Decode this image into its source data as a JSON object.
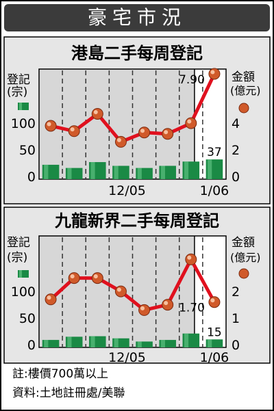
{
  "header": {
    "title": "豪宅市況"
  },
  "charts_meta": {
    "bar_color": "#1a8a45",
    "line_color": "#e0101e",
    "marker_color": "#d05a2a",
    "plot_bg": "#d7d7d7",
    "header_bg": "#3b3b3b",
    "panel_bg": "#e6e6e6"
  },
  "chart_data": [
    {
      "type": "bar+line",
      "title": "港島二手每周登記",
      "left_axis_label": [
        "登記",
        "(宗)"
      ],
      "right_axis_label": [
        "金額",
        "(億元)"
      ],
      "left_ylim": [
        0,
        200
      ],
      "left_ticks": [
        "0",
        "50",
        "100"
      ],
      "right_ylim": [
        0,
        8
      ],
      "right_ticks": [
        "0",
        "2",
        "4"
      ],
      "x_labels": [
        {
          "label": "12/05",
          "after_index": 3
        },
        {
          "label": "1/06",
          "after_index": 7
        }
      ],
      "year_divider_after_index": 6,
      "bars": [
        27,
        21,
        32,
        25,
        21,
        25,
        33,
        37
      ],
      "line": [
        4.0,
        3.6,
        4.9,
        2.8,
        3.5,
        3.4,
        4.2,
        7.9
      ],
      "annotations": [
        {
          "series": "line",
          "index": 7,
          "text": "7.90"
        },
        {
          "series": "bars",
          "index": 7,
          "text": "37"
        }
      ]
    },
    {
      "type": "bar+line",
      "title": "九龍新界二手每周登記",
      "left_axis_label": [
        "登記",
        "(宗)"
      ],
      "right_axis_label": [
        "金額",
        "(億元)"
      ],
      "left_ylim": [
        0,
        200
      ],
      "left_ticks": [
        "0",
        "50",
        "100"
      ],
      "right_ylim": [
        0,
        4
      ],
      "right_ticks": [
        "0",
        "1",
        "2"
      ],
      "x_labels": [
        {
          "label": "12/05",
          "after_index": 3
        },
        {
          "label": "1/06",
          "after_index": 7
        }
      ],
      "year_divider_after_index": 6,
      "bars": [
        14,
        20,
        21,
        17,
        11,
        14,
        26,
        15
      ],
      "line": [
        1.8,
        2.6,
        2.6,
        2.1,
        1.4,
        1.6,
        3.3,
        1.7
      ],
      "annotations": [
        {
          "series": "line",
          "index": 7,
          "text": "1.70"
        },
        {
          "series": "bars",
          "index": 7,
          "text": "15"
        }
      ]
    }
  ],
  "footnotes": {
    "note": "註:樓價700萬以上",
    "source": "資料:土地註冊處/美聯"
  }
}
